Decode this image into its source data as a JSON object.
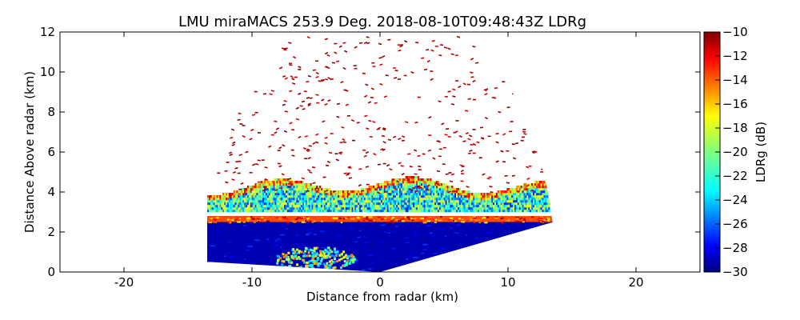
{
  "chart_data": {
    "type": "heatmap",
    "title": "LMU miraMACS 253.9 Deg. 2018-08-10T09:48:43Z  LDRg",
    "xlabel": "Distance from radar (km)",
    "ylabel": "Distance Above radar  (km)",
    "xlim": [
      -25,
      25
    ],
    "ylim": [
      0,
      12
    ],
    "xticks": [
      -20,
      -10,
      0,
      10,
      20
    ],
    "yticks": [
      0,
      2,
      4,
      6,
      8,
      10,
      12
    ],
    "colorbar": {
      "label": "LDRg (dB)",
      "range": [
        -30,
        -10
      ],
      "ticks": [
        -10,
        -12,
        -14,
        -16,
        -18,
        -20,
        -22,
        -24,
        -26,
        -28,
        -30
      ],
      "colormap": "jet"
    },
    "scan": {
      "radar_origin": [
        0,
        0
      ],
      "max_range_km": 13.7,
      "rhi_left_edge_km": -13.5,
      "layers": [
        {
          "name": "noise speckle",
          "bottom_km": 4.0,
          "top_km": 12.0,
          "ldr_db": -10
        },
        {
          "name": "upper cloud",
          "bottom_km": 3.0,
          "top_km": 4.8,
          "ldr_db": -22
        },
        {
          "name": "melting layer",
          "bottom_km": 2.5,
          "top_km": 2.8,
          "ldr_db": -14
        },
        {
          "name": "rain",
          "bottom_km": 0.0,
          "top_km": 2.5,
          "ldr_db": -29
        },
        {
          "name": "near-surface feature",
          "bottom_km": 0.2,
          "top_km": 1.4,
          "ldr_db": -15
        }
      ]
    }
  }
}
